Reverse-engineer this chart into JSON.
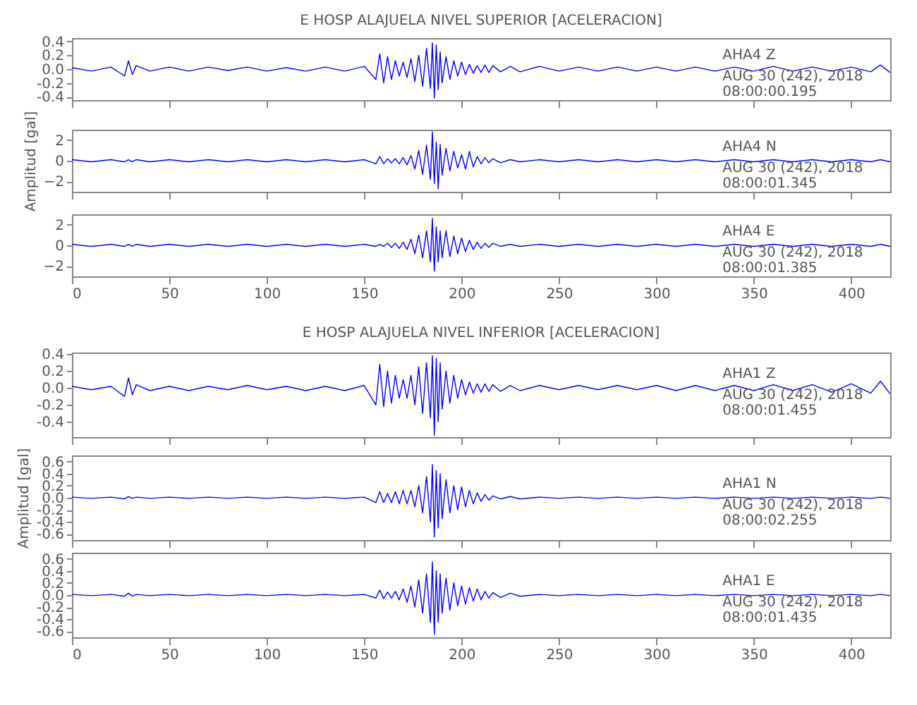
{
  "chart_data": [
    {
      "type": "line",
      "title": "E HOSP ALAJUELA NIVEL SUPERIOR [ACELERACION]",
      "x": [
        0,
        10,
        20,
        27,
        29,
        31,
        33,
        40,
        50,
        60,
        70,
        80,
        90,
        100,
        110,
        120,
        130,
        140,
        150,
        156,
        158,
        160,
        162,
        164,
        166,
        168,
        170,
        172,
        174,
        176,
        178,
        180,
        182,
        184,
        185,
        186,
        187,
        188,
        189,
        190,
        192,
        194,
        196,
        198,
        200,
        202,
        204,
        206,
        208,
        210,
        212,
        214,
        216,
        220,
        225,
        230,
        240,
        250,
        260,
        270,
        280,
        290,
        300,
        310,
        320,
        330,
        340,
        350,
        360,
        370,
        380,
        390,
        400,
        410,
        415,
        420
      ],
      "values": [
        0.02,
        -0.03,
        0.03,
        -0.1,
        0.12,
        -0.08,
        0.05,
        -0.03,
        0.03,
        -0.03,
        0.03,
        -0.02,
        0.03,
        -0.03,
        0.02,
        -0.03,
        0.03,
        -0.03,
        0.04,
        -0.15,
        0.22,
        -0.2,
        0.18,
        -0.15,
        0.12,
        -0.1,
        0.1,
        -0.12,
        0.15,
        -0.18,
        0.2,
        -0.25,
        0.3,
        -0.28,
        0.38,
        -0.42,
        0.35,
        -0.3,
        0.25,
        -0.2,
        0.18,
        -0.15,
        0.12,
        -0.1,
        0.1,
        -0.08,
        0.07,
        -0.06,
        0.05,
        -0.05,
        0.06,
        -0.05,
        0.05,
        -0.04,
        0.04,
        -0.04,
        0.04,
        -0.03,
        0.03,
        -0.03,
        0.03,
        -0.03,
        0.03,
        -0.03,
        0.03,
        -0.03,
        0.03,
        -0.03,
        0.04,
        -0.03,
        0.03,
        -0.03,
        0.03,
        -0.04,
        0.06,
        -0.05
      ],
      "color": "#0000ff",
      "xlim": [
        0,
        420
      ],
      "ylim": [
        -0.45,
        0.45
      ],
      "xticks": [
        0,
        50,
        100,
        150,
        200,
        250,
        300,
        350,
        400
      ],
      "yticks": [
        {
          "value": -0.4,
          "label": "-0.4"
        },
        {
          "value": -0.2,
          "label": "-0.2"
        },
        {
          "value": 0,
          "label": "0.0"
        },
        {
          "value": 0.2,
          "label": "0.2"
        },
        {
          "value": 0.4,
          "label": "0.4"
        }
      ],
      "tick_labels": "y",
      "annotations": [
        "AHA4  Z",
        "AUG 30 (242), 2018",
        "08:00:00.195"
      ]
    },
    {
      "type": "line",
      "ylabel": "Amplitud [gal]",
      "x": [
        0,
        10,
        20,
        27,
        29,
        31,
        33,
        40,
        50,
        60,
        70,
        80,
        90,
        100,
        110,
        120,
        130,
        140,
        150,
        156,
        158,
        160,
        162,
        164,
        166,
        168,
        170,
        172,
        174,
        176,
        178,
        180,
        182,
        184,
        185,
        186,
        187,
        188,
        189,
        190,
        192,
        194,
        196,
        198,
        200,
        202,
        204,
        206,
        208,
        210,
        212,
        214,
        216,
        220,
        225,
        230,
        240,
        250,
        260,
        270,
        280,
        290,
        300,
        310,
        320,
        330,
        340,
        350,
        360,
        370,
        380,
        390,
        400,
        410,
        415,
        420
      ],
      "values": [
        0.1,
        -0.1,
        0.1,
        -0.1,
        0.1,
        -0.1,
        0.1,
        -0.1,
        0.1,
        -0.1,
        0.1,
        -0.1,
        0.1,
        -0.1,
        0.1,
        -0.1,
        0.1,
        -0.1,
        0.1,
        -0.3,
        0.4,
        -0.3,
        0.2,
        -0.2,
        0.2,
        -0.3,
        0.3,
        -0.4,
        0.5,
        -0.8,
        1.0,
        -1.3,
        1.5,
        -1.8,
        2.8,
        -2.2,
        1.8,
        -2.7,
        1.6,
        -1.4,
        1.2,
        -1.0,
        0.9,
        -0.7,
        0.6,
        -0.8,
        0.9,
        -0.6,
        0.4,
        -0.3,
        0.3,
        -0.2,
        0.2,
        -0.2,
        0.1,
        -0.1,
        0.1,
        -0.1,
        0.1,
        -0.1,
        0.1,
        -0.1,
        0.1,
        -0.1,
        0.1,
        -0.1,
        0.1,
        -0.1,
        0.1,
        -0.1,
        0.1,
        -0.1,
        0.1,
        -0.1,
        0.1,
        -0.1
      ],
      "color": "#0000ff",
      "xlim": [
        0,
        420
      ],
      "ylim": [
        -3,
        3
      ],
      "xticks": [
        0,
        50,
        100,
        150,
        200,
        250,
        300,
        350,
        400
      ],
      "yticks": [
        -2,
        0,
        2
      ],
      "tick_labels": "y",
      "annotations": [
        "AHA4  N",
        "AUG 30 (242), 2018",
        "08:00:01.345"
      ]
    },
    {
      "type": "line",
      "x": [
        0,
        10,
        20,
        27,
        29,
        31,
        33,
        40,
        50,
        60,
        70,
        80,
        90,
        100,
        110,
        120,
        130,
        140,
        150,
        156,
        158,
        160,
        162,
        164,
        166,
        168,
        170,
        172,
        174,
        176,
        178,
        180,
        182,
        184,
        185,
        186,
        187,
        188,
        189,
        190,
        192,
        194,
        196,
        198,
        200,
        202,
        204,
        206,
        208,
        210,
        212,
        214,
        216,
        220,
        225,
        230,
        240,
        250,
        260,
        270,
        280,
        290,
        300,
        310,
        320,
        330,
        340,
        350,
        360,
        370,
        380,
        390,
        400,
        410,
        415,
        420
      ],
      "values": [
        0.1,
        -0.1,
        0.1,
        -0.1,
        0.1,
        -0.1,
        0.1,
        -0.1,
        0.1,
        -0.1,
        0.1,
        -0.1,
        0.1,
        -0.1,
        0.1,
        -0.1,
        0.1,
        -0.1,
        0.1,
        -0.1,
        0.1,
        -0.1,
        0.2,
        -0.2,
        0.2,
        -0.3,
        0.3,
        -0.4,
        0.6,
        -0.8,
        1.0,
        -1.2,
        1.4,
        -1.6,
        2.6,
        -2.5,
        1.8,
        -1.6,
        1.4,
        -1.2,
        1.4,
        -1.1,
        0.9,
        -0.8,
        0.7,
        -0.6,
        0.5,
        -0.4,
        0.3,
        -0.3,
        0.2,
        -0.2,
        0.2,
        -0.1,
        0.1,
        -0.1,
        0.1,
        -0.1,
        0.1,
        -0.1,
        0.1,
        -0.1,
        0.1,
        -0.1,
        0.1,
        -0.1,
        0.1,
        -0.1,
        0.1,
        -0.1,
        0.1,
        -0.1,
        0.1,
        -0.1,
        0.1,
        -0.1
      ],
      "color": "#0000ff",
      "xlim": [
        0,
        420
      ],
      "ylim": [
        -3,
        3
      ],
      "xticks": [
        0,
        50,
        100,
        150,
        200,
        250,
        300,
        350,
        400
      ],
      "yticks": [
        -2,
        0,
        2
      ],
      "annotations": [
        "AHA4  E",
        "AUG 30 (242), 2018",
        "08:00:01.385"
      ]
    },
    {
      "type": "line",
      "title": "E HOSP ALAJUELA NIVEL INFERIOR [ACELERACION]",
      "x": [
        0,
        10,
        20,
        27,
        29,
        31,
        33,
        40,
        50,
        60,
        70,
        80,
        90,
        100,
        110,
        120,
        130,
        140,
        150,
        156,
        158,
        160,
        162,
        164,
        166,
        168,
        170,
        172,
        174,
        176,
        178,
        180,
        182,
        184,
        185,
        186,
        187,
        188,
        189,
        190,
        192,
        194,
        196,
        198,
        200,
        202,
        204,
        206,
        208,
        210,
        212,
        214,
        216,
        220,
        225,
        230,
        240,
        250,
        260,
        270,
        280,
        290,
        300,
        310,
        320,
        330,
        340,
        350,
        360,
        370,
        380,
        390,
        400,
        410,
        415,
        420
      ],
      "values": [
        0.02,
        -0.02,
        0.02,
        -0.1,
        0.12,
        -0.08,
        0.04,
        -0.03,
        0.02,
        -0.03,
        0.02,
        -0.02,
        0.03,
        -0.02,
        0.02,
        -0.03,
        0.02,
        -0.03,
        0.03,
        -0.2,
        0.28,
        -0.22,
        0.2,
        -0.18,
        0.15,
        -0.12,
        0.1,
        -0.12,
        0.15,
        -0.2,
        0.25,
        -0.3,
        0.3,
        -0.35,
        0.38,
        -0.56,
        0.35,
        -0.4,
        0.3,
        -0.25,
        0.2,
        -0.18,
        0.15,
        -0.12,
        0.1,
        -0.08,
        0.07,
        -0.06,
        0.05,
        -0.05,
        0.05,
        -0.04,
        0.04,
        -0.04,
        0.03,
        -0.03,
        0.03,
        -0.02,
        0.03,
        -0.02,
        0.03,
        -0.02,
        0.03,
        -0.03,
        0.03,
        -0.03,
        0.03,
        -0.03,
        0.04,
        -0.03,
        0.04,
        -0.05,
        0.05,
        -0.06,
        0.08,
        -0.07
      ],
      "color": "#0000ff",
      "xlim": [
        0,
        420
      ],
      "ylim": [
        -0.58,
        0.42
      ],
      "xticks": [
        0,
        50,
        100,
        150,
        200,
        250,
        300,
        350,
        400
      ],
      "yticks": [
        {
          "value": -0.4,
          "label": "-0.4"
        },
        {
          "value": -0.2,
          "label": "-0.2"
        },
        {
          "value": 0,
          "label": "0.0"
        },
        {
          "value": 0.2,
          "label": "0.2"
        },
        {
          "value": 0.4,
          "label": "0.4"
        }
      ],
      "tick_labels": "y",
      "annotations": [
        "AHA1  Z",
        "AUG 30 (242), 2018",
        "08:00:01.455"
      ]
    },
    {
      "type": "line",
      "ylabel": "Amplitud [gal]",
      "x": [
        0,
        10,
        20,
        27,
        29,
        31,
        33,
        40,
        50,
        60,
        70,
        80,
        90,
        100,
        110,
        120,
        130,
        140,
        150,
        156,
        158,
        160,
        162,
        164,
        166,
        168,
        170,
        172,
        174,
        176,
        178,
        180,
        182,
        184,
        185,
        186,
        187,
        188,
        189,
        190,
        192,
        194,
        196,
        198,
        200,
        202,
        204,
        206,
        208,
        210,
        212,
        214,
        216,
        220,
        225,
        230,
        240,
        250,
        260,
        270,
        280,
        290,
        300,
        310,
        320,
        330,
        340,
        350,
        360,
        370,
        380,
        390,
        400,
        410,
        415,
        420
      ],
      "values": [
        0.01,
        -0.01,
        0.01,
        -0.02,
        0.02,
        -0.01,
        0.01,
        -0.01,
        0.01,
        -0.01,
        0.01,
        -0.01,
        0.01,
        -0.01,
        0.01,
        -0.01,
        0.01,
        -0.01,
        0.01,
        -0.08,
        0.1,
        -0.08,
        0.07,
        -0.08,
        0.1,
        -0.1,
        0.12,
        -0.1,
        0.12,
        -0.15,
        0.2,
        -0.25,
        0.35,
        -0.4,
        0.55,
        -0.65,
        0.45,
        -0.5,
        0.4,
        -0.35,
        0.3,
        -0.25,
        0.2,
        -0.2,
        0.18,
        -0.15,
        0.12,
        -0.1,
        0.08,
        -0.06,
        0.05,
        -0.04,
        0.03,
        -0.02,
        0.02,
        -0.02,
        0.01,
        -0.01,
        0.01,
        -0.01,
        0.01,
        -0.01,
        0.01,
        -0.01,
        0.01,
        -0.01,
        0.01,
        -0.01,
        0.01,
        -0.01,
        0.01,
        -0.01,
        0.01,
        -0.01,
        0.01,
        -0.01
      ],
      "color": "#0000ff",
      "xlim": [
        0,
        420
      ],
      "ylim": [
        -0.7,
        0.7
      ],
      "xticks": [
        0,
        50,
        100,
        150,
        200,
        250,
        300,
        350,
        400
      ],
      "yticks": [
        {
          "value": -0.6,
          "label": "-0.6"
        },
        {
          "value": -0.4,
          "label": "-0.4"
        },
        {
          "value": -0.2,
          "label": "-0.2"
        },
        {
          "value": 0,
          "label": "0.0"
        },
        {
          "value": 0.2,
          "label": "0.2"
        },
        {
          "value": 0.4,
          "label": "0.4"
        },
        {
          "value": 0.6,
          "label": "0.6"
        }
      ],
      "tick_labels": "y",
      "annotations": [
        "AHA1  N",
        "AUG 30 (242), 2018",
        "08:00:02.255"
      ]
    },
    {
      "type": "line",
      "x": [
        0,
        10,
        20,
        27,
        29,
        31,
        33,
        40,
        50,
        60,
        70,
        80,
        90,
        100,
        110,
        120,
        130,
        140,
        150,
        156,
        158,
        160,
        162,
        164,
        166,
        168,
        170,
        172,
        174,
        176,
        178,
        180,
        182,
        184,
        185,
        186,
        187,
        188,
        189,
        190,
        192,
        194,
        196,
        198,
        200,
        202,
        204,
        206,
        208,
        210,
        212,
        214,
        216,
        220,
        225,
        230,
        240,
        250,
        260,
        270,
        280,
        290,
        300,
        310,
        320,
        330,
        340,
        350,
        360,
        370,
        380,
        390,
        400,
        410,
        415,
        420
      ],
      "values": [
        0.01,
        -0.01,
        0.01,
        -0.02,
        0.03,
        -0.02,
        0.01,
        -0.01,
        0.01,
        -0.01,
        0.01,
        -0.01,
        0.01,
        -0.01,
        0.01,
        -0.01,
        0.01,
        -0.01,
        0.01,
        -0.05,
        0.08,
        -0.06,
        0.05,
        -0.05,
        0.06,
        -0.08,
        0.1,
        -0.12,
        0.15,
        -0.2,
        0.25,
        -0.3,
        0.35,
        -0.45,
        0.55,
        -0.65,
        0.4,
        -0.45,
        0.35,
        -0.3,
        0.28,
        -0.25,
        0.2,
        -0.18,
        0.15,
        -0.15,
        0.12,
        -0.1,
        0.1,
        -0.08,
        0.06,
        -0.05,
        0.04,
        -0.04,
        0.03,
        -0.02,
        0.01,
        -0.01,
        0.01,
        -0.01,
        0.01,
        -0.01,
        0.01,
        -0.01,
        0.01,
        -0.01,
        0.01,
        -0.01,
        0.01,
        -0.01,
        0.01,
        -0.01,
        0.01,
        -0.01,
        0.01,
        -0.01
      ],
      "color": "#0000ff",
      "xlim": [
        0,
        420
      ],
      "ylim": [
        -0.7,
        0.7
      ],
      "xticks": [
        0,
        50,
        100,
        150,
        200,
        250,
        300,
        350,
        400
      ],
      "yticks": [
        {
          "value": -0.6,
          "label": "-0.6"
        },
        {
          "value": -0.4,
          "label": "-0.4"
        },
        {
          "value": -0.2,
          "label": "-0.2"
        },
        {
          "value": 0,
          "label": "0.0"
        },
        {
          "value": 0.2,
          "label": "0.2"
        },
        {
          "value": 0.4,
          "label": "0.4"
        },
        {
          "value": 0.6,
          "label": "0.6"
        }
      ],
      "annotations": [
        "AHA1  E",
        "AUG 30 (242), 2018",
        "08:00:01.435"
      ]
    }
  ]
}
